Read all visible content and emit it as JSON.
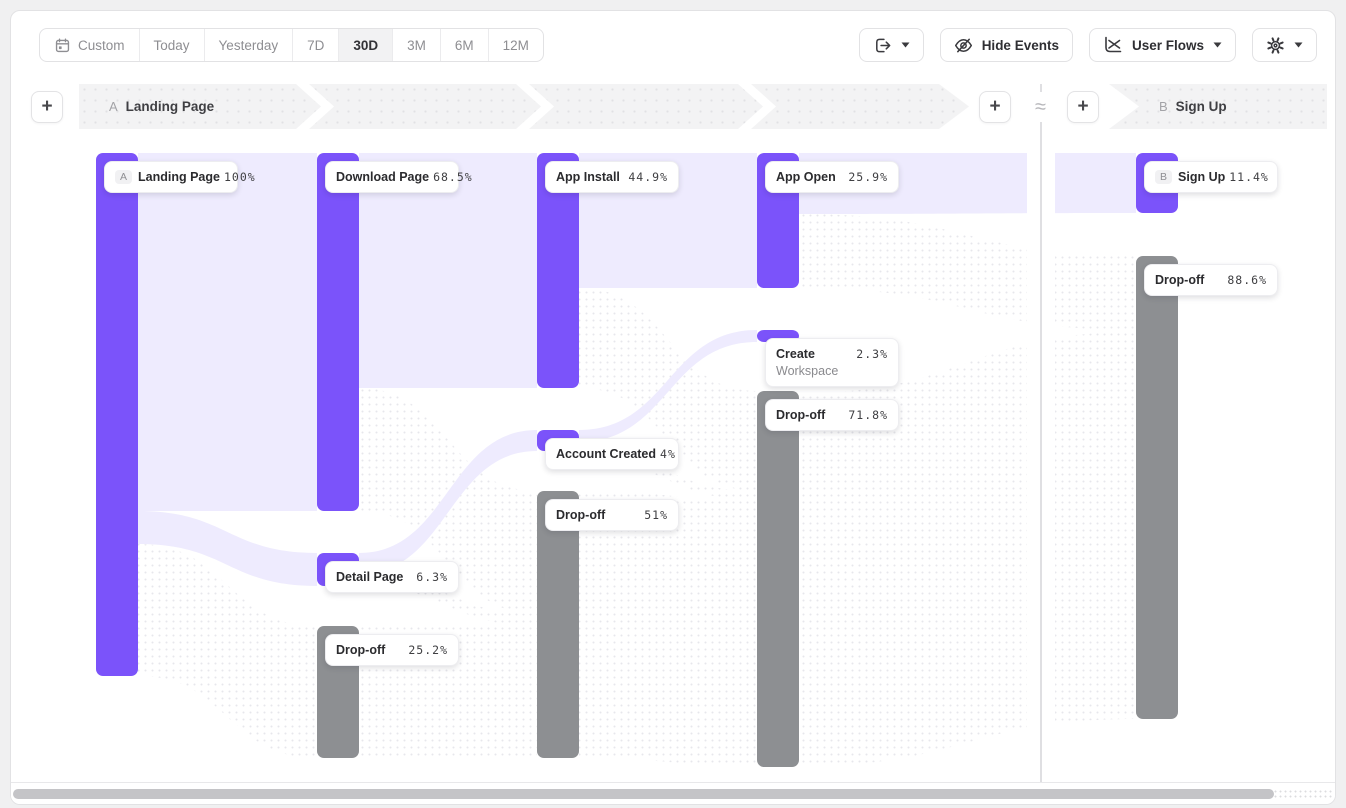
{
  "toolbar": {
    "date_ranges": [
      {
        "label": "Custom",
        "icon": "calendar-icon",
        "active": false
      },
      {
        "label": "Today",
        "active": false
      },
      {
        "label": "Yesterday",
        "active": false
      },
      {
        "label": "7D",
        "active": false
      },
      {
        "label": "30D",
        "active": true
      },
      {
        "label": "3M",
        "active": false
      },
      {
        "label": "6M",
        "active": false
      },
      {
        "label": "12M",
        "active": false
      }
    ],
    "hide_events_label": "Hide Events",
    "view_selector_label": "User Flows"
  },
  "steps_header": {
    "add_step_symbol": "+",
    "separator_symbol": "≈",
    "section_a": {
      "badge": "A",
      "label": "Landing Page"
    },
    "section_b": {
      "badge": "B",
      "label": "Sign Up"
    }
  },
  "chart_data": {
    "type": "sankey",
    "unit": "percent",
    "colors": {
      "node_event": "#7B53FA",
      "node_dropoff": "#8D8F92",
      "flow_conversion": "#EEEBFE",
      "flow_dropoff_dots": "#E7E7EC"
    },
    "nodes": [
      {
        "id": "landing",
        "badge": "A",
        "label": "Landing Page",
        "value": 100,
        "value_label": "100%",
        "kind": "event",
        "column": 0
      },
      {
        "id": "download",
        "label": "Download Page",
        "value": 68.5,
        "value_label": "68.5%",
        "kind": "event",
        "column": 1
      },
      {
        "id": "detail",
        "label": "Detail Page",
        "value": 6.3,
        "value_label": "6.3%",
        "kind": "event",
        "column": 1
      },
      {
        "id": "dropoff1",
        "label": "Drop-off",
        "value": 25.2,
        "value_label": "25.2%",
        "kind": "dropoff",
        "column": 1
      },
      {
        "id": "install",
        "label": "App Install",
        "value": 44.9,
        "value_label": "44.9%",
        "kind": "event",
        "column": 2
      },
      {
        "id": "account",
        "label": "Account Created",
        "value": 4,
        "value_label": "4%",
        "kind": "event",
        "column": 2
      },
      {
        "id": "dropoff2",
        "label": "Drop-off",
        "value": 51,
        "value_label": "51%",
        "kind": "dropoff",
        "column": 2
      },
      {
        "id": "appopen",
        "label": "App Open",
        "value": 25.9,
        "value_label": "25.9%",
        "kind": "event",
        "column": 3
      },
      {
        "id": "createws",
        "label": "Create Workspace",
        "label_wrap": [
          "Create",
          "Workspace"
        ],
        "value": 2.3,
        "value_label": "2.3%",
        "kind": "event",
        "column": 3
      },
      {
        "id": "dropoff3",
        "label": "Drop-off",
        "value": 71.8,
        "value_label": "71.8%",
        "kind": "dropoff",
        "column": 3
      },
      {
        "id": "signup",
        "badge": "B",
        "label": "Sign Up",
        "value": 11.4,
        "value_label": "11.4%",
        "kind": "event",
        "column": 4
      },
      {
        "id": "dropoff4",
        "label": "Drop-off",
        "value": 88.6,
        "value_label": "88.6%",
        "kind": "dropoff",
        "column": 4
      }
    ],
    "flows": [
      {
        "from": "landing",
        "to": "download",
        "style": "conversion"
      },
      {
        "from": "landing",
        "to": "detail",
        "style": "conversion"
      },
      {
        "from": "landing",
        "to": "dropoff1",
        "style": "dropoff"
      },
      {
        "from": "download",
        "to": "install",
        "style": "conversion"
      },
      {
        "from": "download",
        "to": "dropoff2",
        "style": "dropoff"
      },
      {
        "from": "detail",
        "to": "account",
        "style": "conversion"
      },
      {
        "from": "detail",
        "to": "dropoff2",
        "style": "dropoff"
      },
      {
        "from": "dropoff1",
        "to": "dropoff2",
        "style": "dropoff"
      },
      {
        "from": "install",
        "to": "appopen",
        "style": "conversion"
      },
      {
        "from": "install",
        "to": "dropoff3",
        "style": "dropoff"
      },
      {
        "from": "account",
        "to": "createws",
        "style": "conversion"
      },
      {
        "from": "account",
        "to": "dropoff3",
        "style": "dropoff"
      },
      {
        "from": "dropoff2",
        "to": "dropoff3",
        "style": "dropoff"
      },
      {
        "from": "appopen",
        "to": "signup",
        "style": "conversion"
      },
      {
        "from": "appopen",
        "to": "dropoff4",
        "style": "dropoff"
      },
      {
        "from": "dropoff3",
        "to": "dropoff4",
        "style": "dropoff"
      }
    ]
  }
}
